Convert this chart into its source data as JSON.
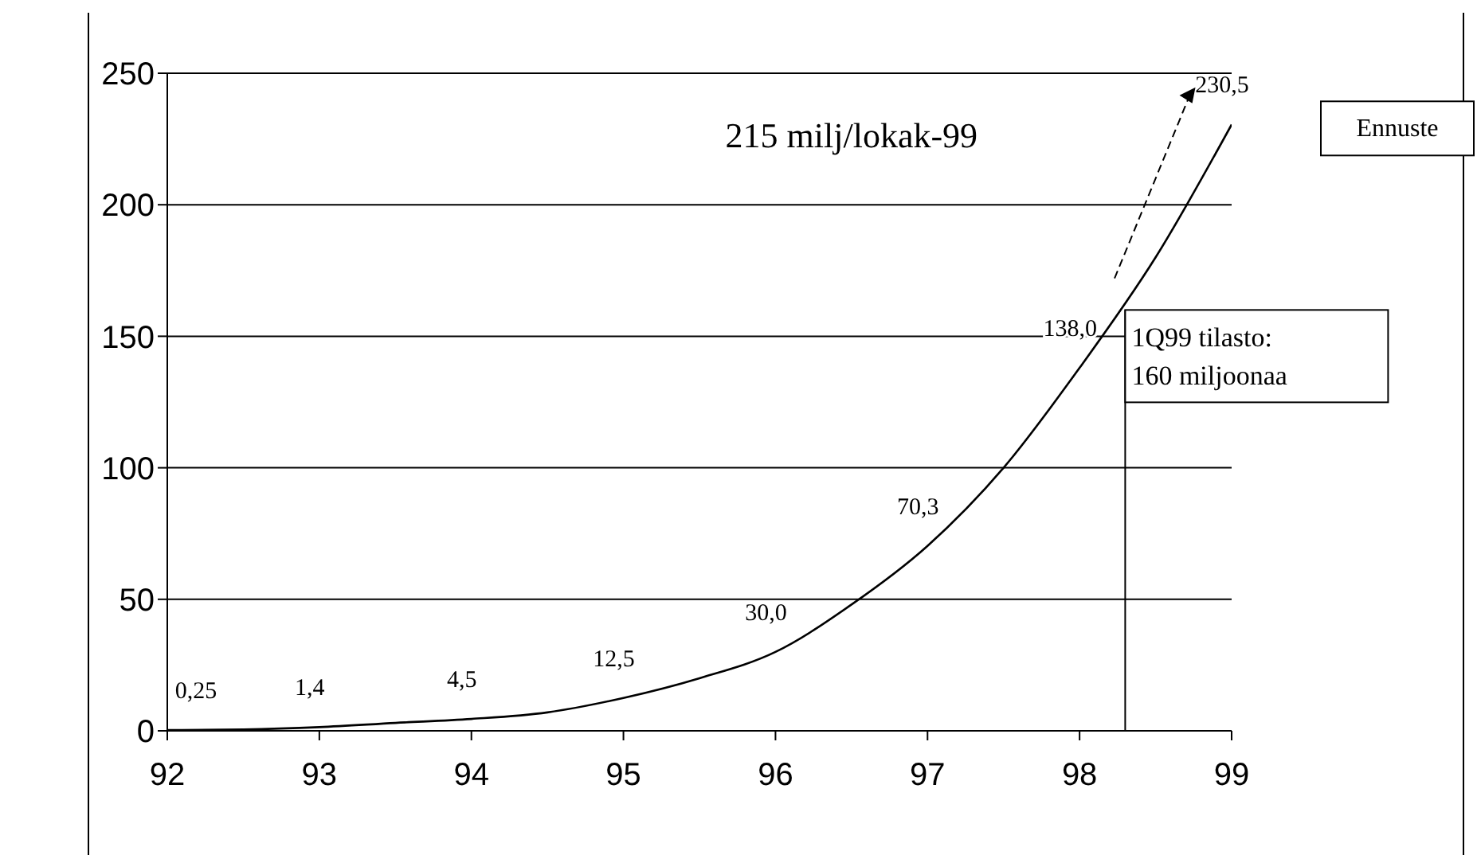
{
  "chart_data": {
    "type": "line",
    "x": [
      92,
      92.5,
      93,
      93.5,
      94,
      94.5,
      95,
      95.5,
      96,
      96.5,
      97,
      97.5,
      98,
      98.5,
      99
    ],
    "series": [
      {
        "color": "#000000",
        "values": [
          0.25,
          0.5,
          1.4,
          3,
          4.5,
          7,
          12.5,
          20,
          30,
          48,
          70.3,
          100,
          138,
          180,
          230.5
        ],
        "value_labels": [
          "0,25",
          null,
          "1,4",
          null,
          "4,5",
          null,
          "12,5",
          null,
          "30,0",
          null,
          "70,3",
          null,
          "138,0",
          null,
          "230,5"
        ]
      }
    ],
    "xlim": [
      92,
      99
    ],
    "xticks": [
      92,
      93,
      94,
      95,
      96,
      97,
      98,
      99
    ],
    "ylim": [
      0,
      250
    ],
    "yticks": [
      0,
      50,
      100,
      150,
      200,
      250
    ],
    "grid": "y",
    "marker": "none",
    "line_style": "solid",
    "legend": false,
    "annotations": [
      "215 milj/lokak-99",
      "Ennuste",
      {
        "text": "1Q99 tilasto: 160 miljoonaa",
        "x": 98.3,
        "y": 160
      }
    ]
  }
}
